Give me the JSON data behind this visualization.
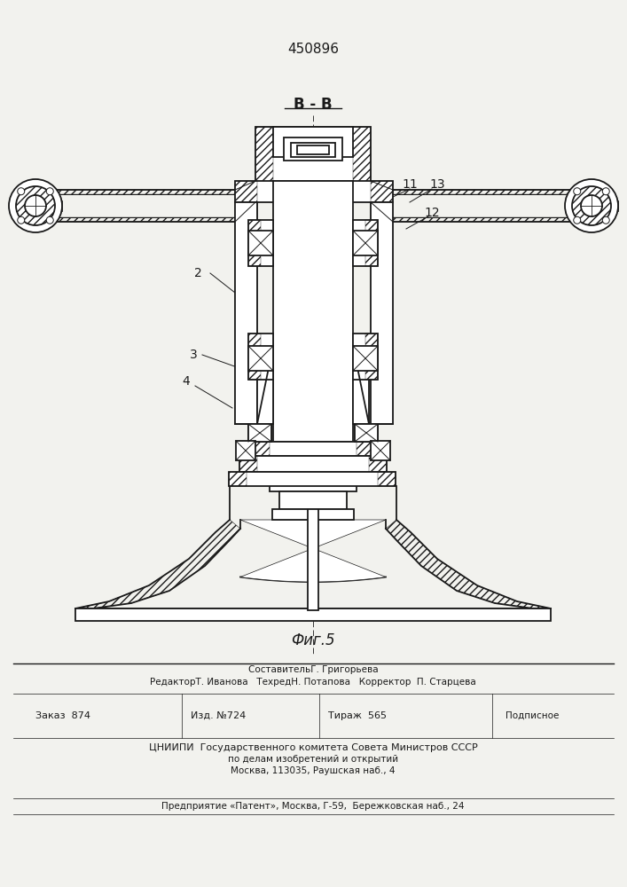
{
  "patent_number": "450896",
  "section_label": "B - B",
  "fig_label": "Фиг.5",
  "label_2": "2",
  "label_3": "3",
  "label_4": "4",
  "label_11": "11",
  "label_12": "12",
  "label_13": "13",
  "sestavitel": "СоставительГ. Григорьева",
  "redaktor": "РедакторТ. Иванова   ТехредН. Потапова   Корректор  П. Старцева",
  "zakaz": "Заказ  874",
  "izd": "Изд. №724",
  "tirazh": "Тираж  565",
  "podpisnoe": "Подписное",
  "cniip1": "ЦНИИПИ  Государственного комитета Совета Министров СССР",
  "cniip2": "по делам изобретений и открытий",
  "cniip3": "Москва, 113035, Раушская наб., 4",
  "predpr": "Предприятие «Патент», Москва, Г-59,  Бережковская наб., 24",
  "bg_color": "#f2f2ee",
  "line_color": "#1a1a1a"
}
